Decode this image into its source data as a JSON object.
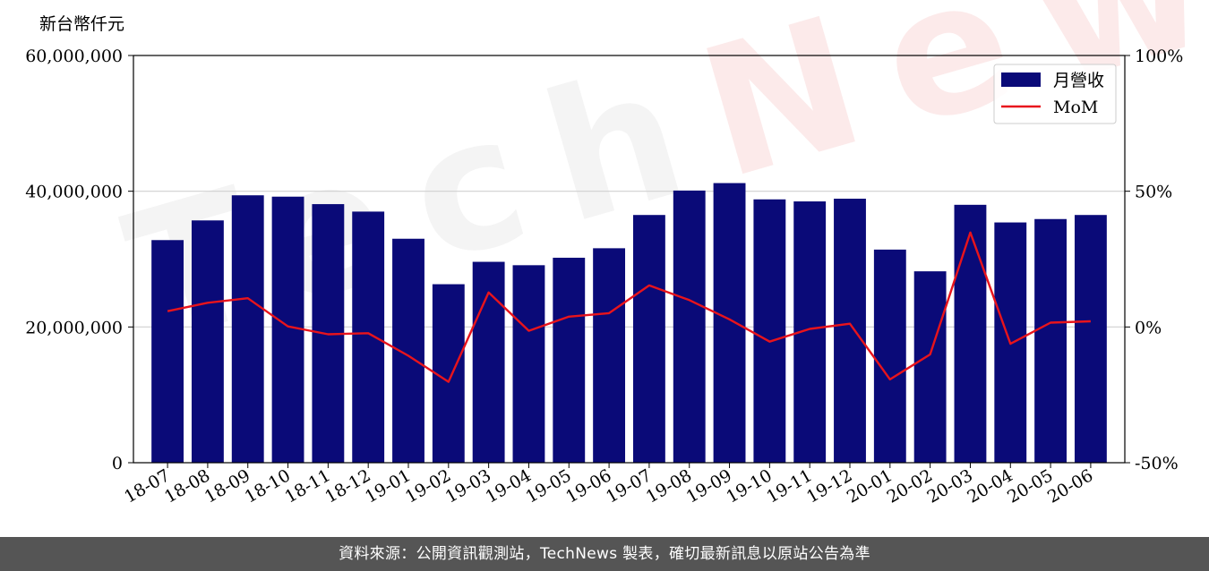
{
  "watermark": {
    "text_a": "Tech",
    "text_b": "News"
  },
  "footer": {
    "text": "資料來源：公開資訊觀測站，TechNews 製表，確切最新訊息以原站公告為準"
  },
  "chart_data": {
    "type": "bar",
    "title": "",
    "ylabel": "新台幣仟元",
    "ylim": [
      0,
      60000000
    ],
    "y_ticks": [
      "0",
      "20,000,000",
      "40,000,000",
      "60,000,000"
    ],
    "y_tick_values": [
      0,
      20000000,
      40000000,
      60000000
    ],
    "y2lim": [
      -50,
      100
    ],
    "y2_ticks": [
      "-50%",
      "0%",
      "50%",
      "100%"
    ],
    "y2_tick_values": [
      -50,
      0,
      50,
      100
    ],
    "grid": "horizontal",
    "legend_position": "top-right",
    "categories": [
      "18-07",
      "18-08",
      "18-09",
      "18-10",
      "18-11",
      "18-12",
      "19-01",
      "19-02",
      "19-03",
      "19-04",
      "19-05",
      "19-06",
      "19-07",
      "19-08",
      "19-09",
      "19-10",
      "19-11",
      "19-12",
      "20-01",
      "20-02",
      "20-03",
      "20-04",
      "20-05",
      "20-06"
    ],
    "series": [
      {
        "name": "月營收",
        "type": "bar",
        "axis": "left",
        "color": "#0a0a78",
        "values": [
          32800000,
          35700000,
          39400000,
          39200000,
          38100000,
          37000000,
          33000000,
          26300000,
          29600000,
          29100000,
          30200000,
          31600000,
          36500000,
          40100000,
          41200000,
          38800000,
          38500000,
          38900000,
          31400000,
          28200000,
          38000000,
          35400000,
          35900000,
          36500000
        ]
      },
      {
        "name": "MoM",
        "type": "line",
        "axis": "right",
        "color": "#e8141c",
        "values": [
          5.8,
          8.9,
          10.6,
          0.2,
          -2.7,
          -2.3,
          -10.6,
          -20.2,
          12.7,
          -1.4,
          3.8,
          5.1,
          15.3,
          9.9,
          2.8,
          -5.4,
          -0.7,
          1.2,
          -19.3,
          -10.1,
          34.8,
          -6.2,
          1.6,
          2.1
        ]
      }
    ]
  }
}
